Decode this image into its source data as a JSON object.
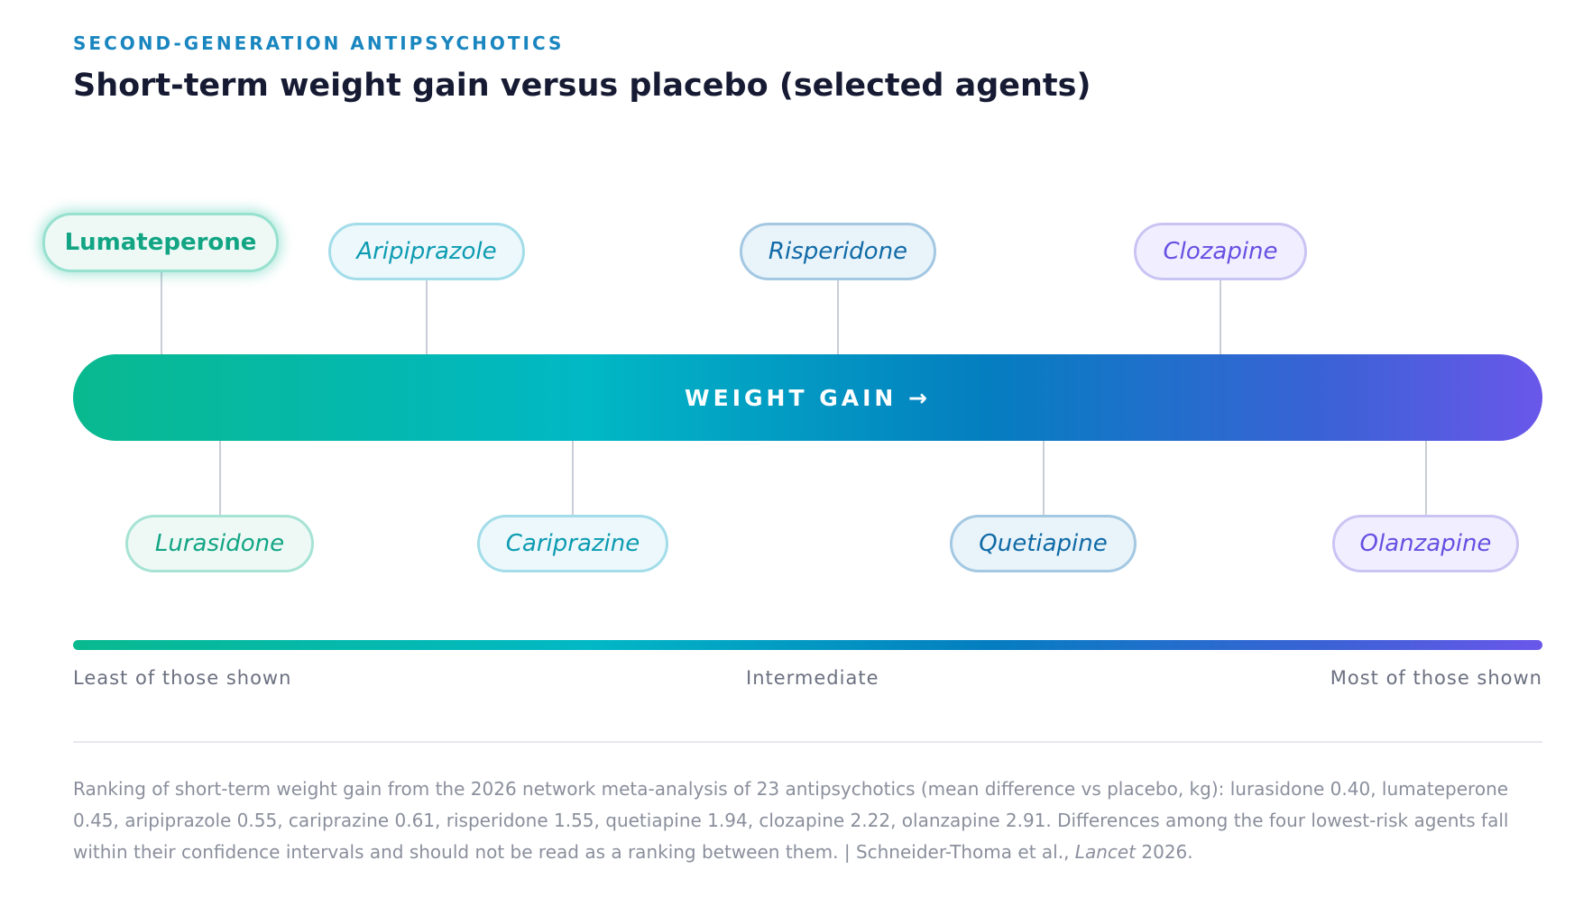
{
  "header": {
    "eyebrow": "SECOND-GENERATION ANTIPSYCHOTICS",
    "title": "Short-term weight gain versus placebo (selected agents)"
  },
  "band": {
    "label": "WEIGHT GAIN →"
  },
  "agents_top": [
    {
      "name": "Lumateperone",
      "color": "#12a584"
    },
    {
      "name": "Aripiprazole",
      "color": "#0d9bb2"
    },
    {
      "name": "Risperidone",
      "color": "#0f6aa6"
    },
    {
      "name": "Clozapine",
      "color": "#6650e2"
    }
  ],
  "agents_bottom": [
    {
      "name": "Lurasidone",
      "color": "#12a584"
    },
    {
      "name": "Cariprazine",
      "color": "#0d9bb2"
    },
    {
      "name": "Quetiapine",
      "color": "#0f6aa6"
    },
    {
      "name": "Olanzapine",
      "color": "#6650e2"
    }
  ],
  "highlighted_agent": "Lumateperone",
  "scale": {
    "left": "Least of those shown",
    "middle": "Intermediate",
    "right": "Most of those shown",
    "gradient_colors": [
      "#08b98f",
      "#01b8c5",
      "#047ec0",
      "#3a62d5",
      "#6a57ea"
    ]
  },
  "footnote": {
    "text": "Ranking of short-term weight gain from the 2026 network meta-analysis of 23 antipsychotics (mean difference vs placebo, kg): lurasidone 0.40, lumateperone 0.45, aripiprazole 0.55, cariprazine 0.61, risperidone 1.55, quetiapine 1.94, clozapine 2.22, olanzapine 2.91. Differences among the four lowest-risk agents fall within their confidence intervals and should not be read as a ranking between them.  |  Schneider-Thoma et al.,",
    "journal": "Lancet",
    "year": "2026."
  }
}
